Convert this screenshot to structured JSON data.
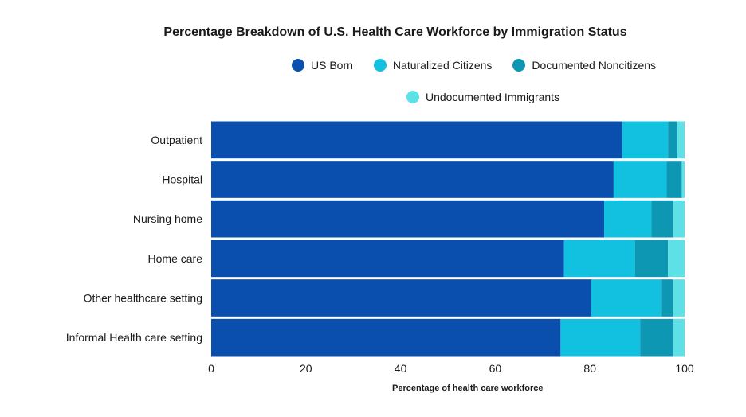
{
  "chart_data": {
    "type": "bar",
    "orientation": "horizontal",
    "stacked": true,
    "title": "Percentage Breakdown of U.S. Health Care Workforce by Immigration Status",
    "xlabel": "Percentage of health care workforce",
    "ylabel": "",
    "xlim": [
      0,
      100
    ],
    "xticks": [
      "0",
      "20",
      "40",
      "60",
      "80",
      "100"
    ],
    "categories": [
      "Outpatient",
      "Hospital",
      "Nursing home",
      "Home care",
      "Other healthcare setting",
      "Informal Health care setting"
    ],
    "series": [
      {
        "name": "US Born",
        "color": "#0a4fad",
        "values": [
          86.8,
          85.0,
          83.0,
          74.5,
          80.3,
          73.8
        ]
      },
      {
        "name": "Naturalized Citizens",
        "color": "#12c0e0",
        "values": [
          9.7,
          11.2,
          10.0,
          15.0,
          14.7,
          16.8
        ]
      },
      {
        "name": "Documented Noncitizens",
        "color": "#0d97b3",
        "values": [
          2.0,
          3.2,
          4.5,
          7.0,
          2.5,
          7.0
        ]
      },
      {
        "name": "Undocumented Immigrants",
        "color": "#5de0e6",
        "values": [
          1.5,
          0.6,
          2.5,
          3.5,
          2.5,
          2.4
        ]
      }
    ],
    "legend_position": "top"
  }
}
